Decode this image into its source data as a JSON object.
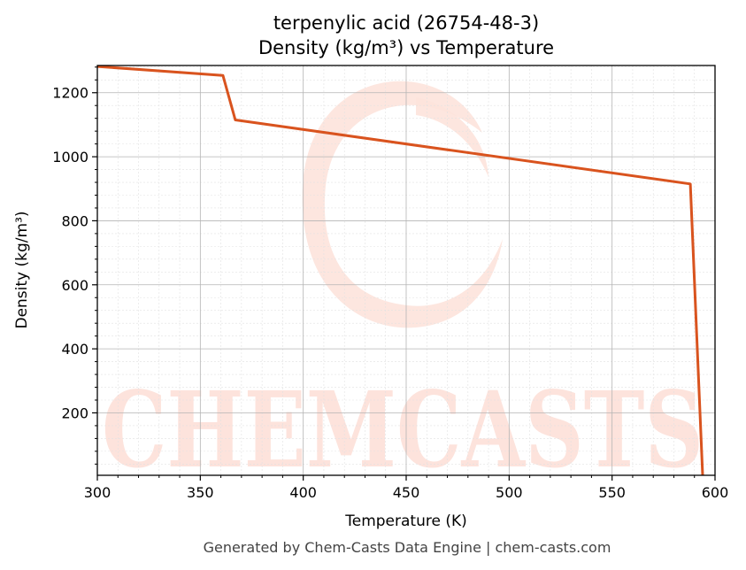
{
  "chart_data": {
    "type": "line",
    "title": "terpenylic acid (26754-48-3)",
    "subtitle": "Density (kg/m³) vs Temperature",
    "xlabel": "Temperature (K)",
    "ylabel": "Density (kg/m³)",
    "xlim": [
      300,
      600
    ],
    "ylim": [
      5,
      1285
    ],
    "xticks": [
      300,
      350,
      400,
      450,
      500,
      550,
      600
    ],
    "yticks": [
      200,
      400,
      600,
      800,
      1000,
      1200
    ],
    "grid": true,
    "series": [
      {
        "color": "#d9531e",
        "x": [
          300,
          361,
          367,
          588,
          594
        ],
        "y": [
          1282,
          1254,
          1115,
          915,
          5
        ]
      }
    ]
  },
  "watermark": {
    "text": "CHEMCASTS",
    "color": "#fde3dc"
  },
  "footer": "Generated by Chem-Casts Data Engine | chem-casts.com"
}
